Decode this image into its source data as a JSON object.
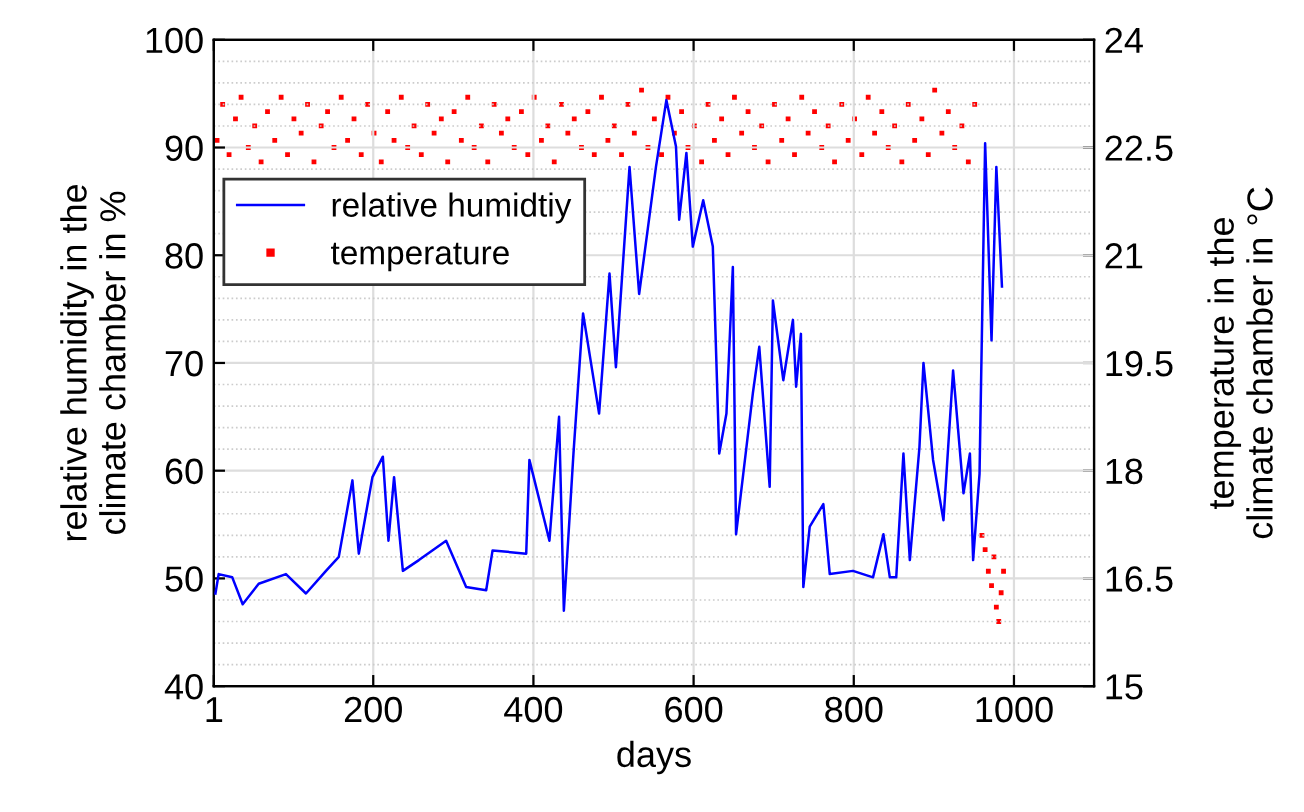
{
  "chart_data": {
    "type": "line",
    "xlabel": "days",
    "ylabel": "relative humidity in the\nclimate chamber in %",
    "y2label": "temperature in the\nclimate chamber in °C",
    "xlim": [
      1,
      1100
    ],
    "xticks": [
      1,
      200,
      400,
      600,
      800,
      1000
    ],
    "ylim": [
      40,
      100
    ],
    "yticks": [
      40,
      50,
      60,
      70,
      80,
      90,
      100
    ],
    "y2lim": [
      15,
      24
    ],
    "y2ticks": [
      15,
      16.5,
      18,
      19.5,
      21,
      22.5,
      24
    ],
    "grid": true,
    "legend": "top left",
    "series": [
      {
        "name": "relative humidtiy",
        "color": "#0000ff",
        "line_style": "solid",
        "marker": "none",
        "x": [
          3,
          7,
          24,
          37,
          57,
          91,
          116,
          141,
          157,
          174,
          182,
          199,
          212,
          219,
          226,
          237,
          257,
          291,
          316,
          341,
          349,
          391,
          395,
          420,
          432,
          438,
          450,
          462,
          482,
          495,
          503,
          520,
          532,
          542,
          553,
          566,
          578,
          582,
          591,
          599,
          612,
          624,
          632,
          641,
          649,
          653,
          662,
          674,
          682,
          695,
          699,
          712,
          724,
          728,
          734,
          737,
          745,
          762,
          770,
          799,
          824,
          837,
          845,
          853,
          862,
          870,
          882,
          887,
          899,
          912,
          924,
          937,
          945,
          949,
          957,
          964,
          972,
          978,
          985
        ],
        "values": [
          48.6,
          50.4,
          50.1,
          47.6,
          49.5,
          50.4,
          48.6,
          50.7,
          52,
          59.1,
          52.3,
          59.4,
          61.3,
          53.5,
          59.4,
          50.7,
          51.7,
          53.5,
          49.2,
          48.9,
          52.6,
          52.3,
          61,
          53.5,
          65,
          47,
          61.6,
          74.6,
          65.3,
          78.3,
          69.6,
          88.2,
          76.4,
          82,
          88.2,
          94.4,
          90.1,
          83.3,
          89.5,
          80.8,
          85.1,
          80.8,
          61.6,
          65.3,
          78.9,
          54.1,
          59.7,
          67.2,
          71.5,
          58.5,
          75.8,
          68.4,
          74,
          67.8,
          72.7,
          49.2,
          54.8,
          56.9,
          50.4,
          50.7,
          50.1,
          54.1,
          50.1,
          50.1,
          61.6,
          51.7,
          62.2,
          70,
          61,
          55.4,
          69.3,
          57.9,
          61.6,
          51.7,
          59.7,
          90.4,
          72.1,
          88.2,
          77.1
        ]
      },
      {
        "name": "temperature",
        "type": "scatter",
        "axis": "y2",
        "color": "#ff0000",
        "marker": "square",
        "x": [
          5,
          12,
          20,
          28,
          35,
          44,
          52,
          60,
          68,
          77,
          85,
          93,
          101,
          110,
          118,
          126,
          135,
          143,
          151,
          160,
          168,
          176,
          185,
          193,
          201,
          210,
          218,
          226,
          235,
          243,
          251,
          260,
          268,
          276,
          285,
          293,
          301,
          310,
          318,
          326,
          335,
          343,
          351,
          360,
          368,
          376,
          385,
          393,
          401,
          410,
          418,
          426,
          435,
          443,
          451,
          460,
          468,
          476,
          485,
          493,
          501,
          510,
          518,
          526,
          535,
          543,
          551,
          560,
          568,
          576,
          585,
          593,
          601,
          610,
          618,
          626,
          635,
          643,
          651,
          660,
          668,
          676,
          685,
          693,
          701,
          710,
          718,
          726,
          735,
          743,
          751,
          760,
          768,
          776,
          785,
          793,
          801,
          810,
          818,
          826,
          835,
          843,
          851,
          860,
          868,
          876,
          885,
          893,
          901,
          910,
          918,
          926,
          935,
          943,
          951,
          960,
          964,
          968,
          972,
          975,
          978,
          981,
          984,
          987
        ],
        "values": [
          22.6,
          23.1,
          22.4,
          22.9,
          23.2,
          22.5,
          22.8,
          22.3,
          23.0,
          22.6,
          23.2,
          22.4,
          22.9,
          22.7,
          23.1,
          22.3,
          22.8,
          23.0,
          22.5,
          23.2,
          22.6,
          22.9,
          22.4,
          23.1,
          22.7,
          22.3,
          23.0,
          22.6,
          23.2,
          22.5,
          22.8,
          22.4,
          23.1,
          22.7,
          22.9,
          22.3,
          23.0,
          22.6,
          23.2,
          22.5,
          22.8,
          22.3,
          23.1,
          22.7,
          22.9,
          22.5,
          23.0,
          22.4,
          23.2,
          22.6,
          22.8,
          22.3,
          23.1,
          22.7,
          22.9,
          22.5,
          23.0,
          22.4,
          23.2,
          22.6,
          22.8,
          22.4,
          23.1,
          22.7,
          23.3,
          22.5,
          22.9,
          22.4,
          23.2,
          22.7,
          23.0,
          22.5,
          22.8,
          22.3,
          23.1,
          22.6,
          22.9,
          22.4,
          23.2,
          22.7,
          23.0,
          22.5,
          22.8,
          22.3,
          23.1,
          22.6,
          22.9,
          22.4,
          23.2,
          22.7,
          23.0,
          22.5,
          22.8,
          22.3,
          23.1,
          22.6,
          22.9,
          22.4,
          23.2,
          22.7,
          23.0,
          22.5,
          22.8,
          22.3,
          23.1,
          22.6,
          22.9,
          22.4,
          23.3,
          22.7,
          23.0,
          22.5,
          22.8,
          22.3,
          23.1,
          17.1,
          16.9,
          16.6,
          16.4,
          16.8,
          16.1,
          15.9,
          16.3,
          16.6
        ]
      }
    ]
  }
}
